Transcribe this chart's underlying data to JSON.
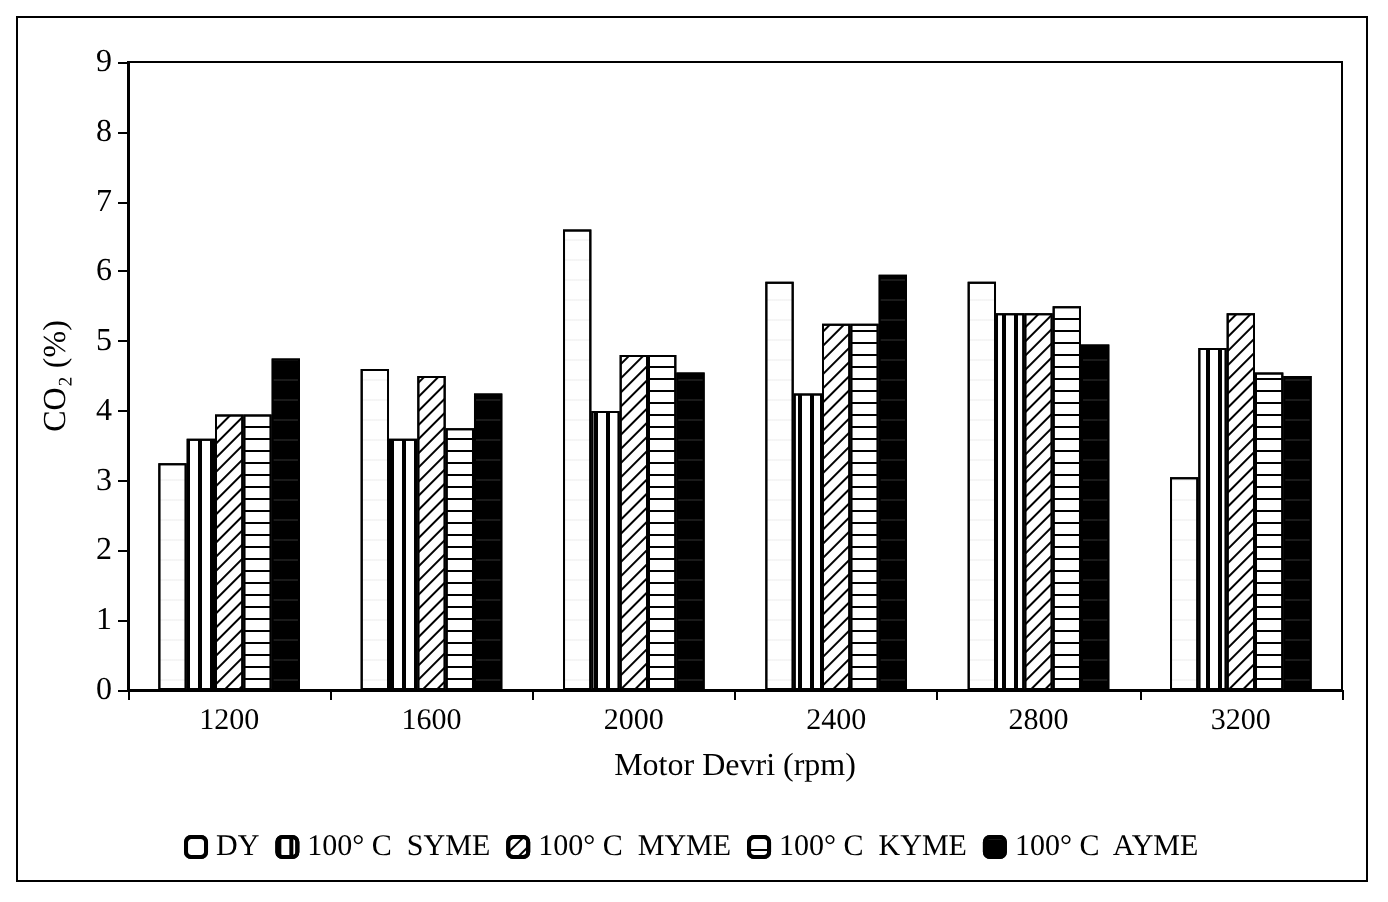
{
  "chart_data": {
    "type": "bar",
    "xlabel": "Motor Devri (rpm)",
    "ylabel": "CO₂ (%)",
    "categories": [
      "1200",
      "1600",
      "2000",
      "2400",
      "2800",
      "3200"
    ],
    "series": [
      {
        "name": "DY",
        "color": "#ffffff",
        "values": [
          3.25,
          4.6,
          6.6,
          5.85,
          5.85,
          3.05
        ]
      },
      {
        "name": "100° C  SYME",
        "color": "#ffffff",
        "values": [
          3.6,
          3.6,
          4.0,
          4.25,
          5.4,
          4.9
        ]
      },
      {
        "name": "100° C  MYME",
        "color": "#ffffff",
        "values": [
          3.95,
          4.5,
          4.8,
          5.25,
          5.4,
          5.4
        ]
      },
      {
        "name": "100° C  KYME",
        "color": "#ffffff",
        "values": [
          3.95,
          3.75,
          4.8,
          5.25,
          5.5,
          4.55
        ]
      },
      {
        "name": "100° C  AYME",
        "color": "#000000",
        "values": [
          4.75,
          4.25,
          4.55,
          5.95,
          4.95,
          4.5
        ]
      }
    ],
    "ylim": [
      0,
      9
    ],
    "yticks": [
      0,
      1,
      2,
      3,
      4,
      5,
      6,
      7,
      8,
      9
    ],
    "grid": false,
    "legend": "bottom"
  }
}
